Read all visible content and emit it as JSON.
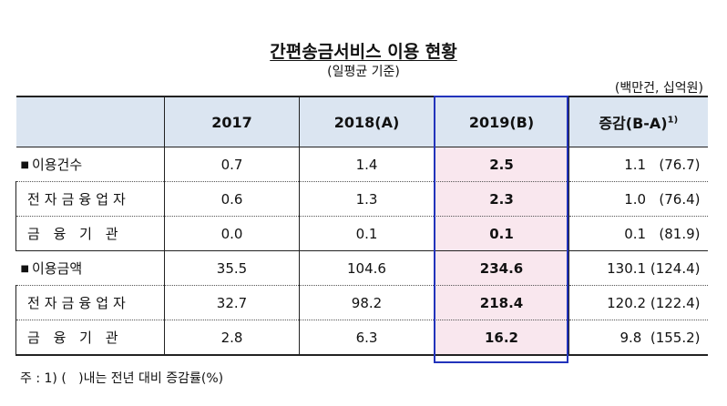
{
  "title": "간편송금서비스 이용 현황",
  "subtitle": "(일평균 기준)",
  "unit": "(백만건, 십억원)",
  "table": {
    "headers": [
      "",
      "2017",
      "2018(A)",
      "2019(B)",
      "증감(B-A)"
    ],
    "header_sup": "1)",
    "rows": [
      {
        "label": "이용건수",
        "v2017": "0.7",
        "v2018": "1.4",
        "v2019": "2.5",
        "change": "1.1   (76.7)"
      },
      {
        "label": "전자금융업자",
        "v2017": "0.6",
        "v2018": "1.3",
        "v2019": "2.3",
        "change": "1.0   (76.4)"
      },
      {
        "label": "금 융 기 관",
        "v2017": "0.0",
        "v2018": "0.1",
        "v2019": "0.1",
        "change": "0.1   (81.9)"
      },
      {
        "label": "이용금액",
        "v2017": "35.5",
        "v2018": "104.6",
        "v2019": "234.6",
        "change": "130.1 (124.4)"
      },
      {
        "label": "전자금융업자",
        "v2017": "32.7",
        "v2018": "98.2",
        "v2019": "218.4",
        "change": "120.2 (122.4)"
      },
      {
        "label": "금 융 기 관",
        "v2017": "2.8",
        "v2018": "6.3",
        "v2019": "16.2",
        "change": "9.8  (155.2)"
      }
    ]
  },
  "bullet_symbol": "■",
  "footnote": "주 : 1) (   )내는 전년 대비 증감률(%)"
}
